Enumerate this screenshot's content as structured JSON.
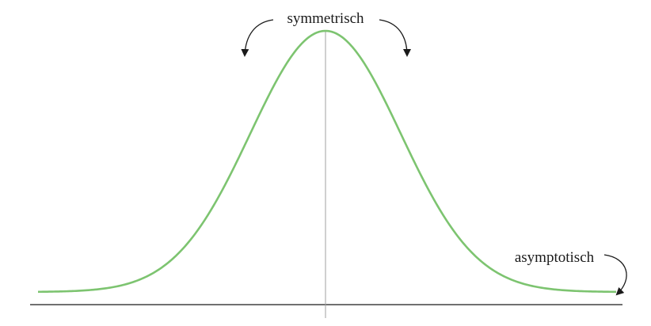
{
  "labels": {
    "symmetry": "symmetrisch",
    "asymptote": "asymptotisch"
  },
  "colors": {
    "curve": "#7dc470",
    "axis": "#1a1a1a",
    "center_line": "#a0a0a0",
    "arrows": "#1a1a1a",
    "background": "#ffffff"
  }
}
